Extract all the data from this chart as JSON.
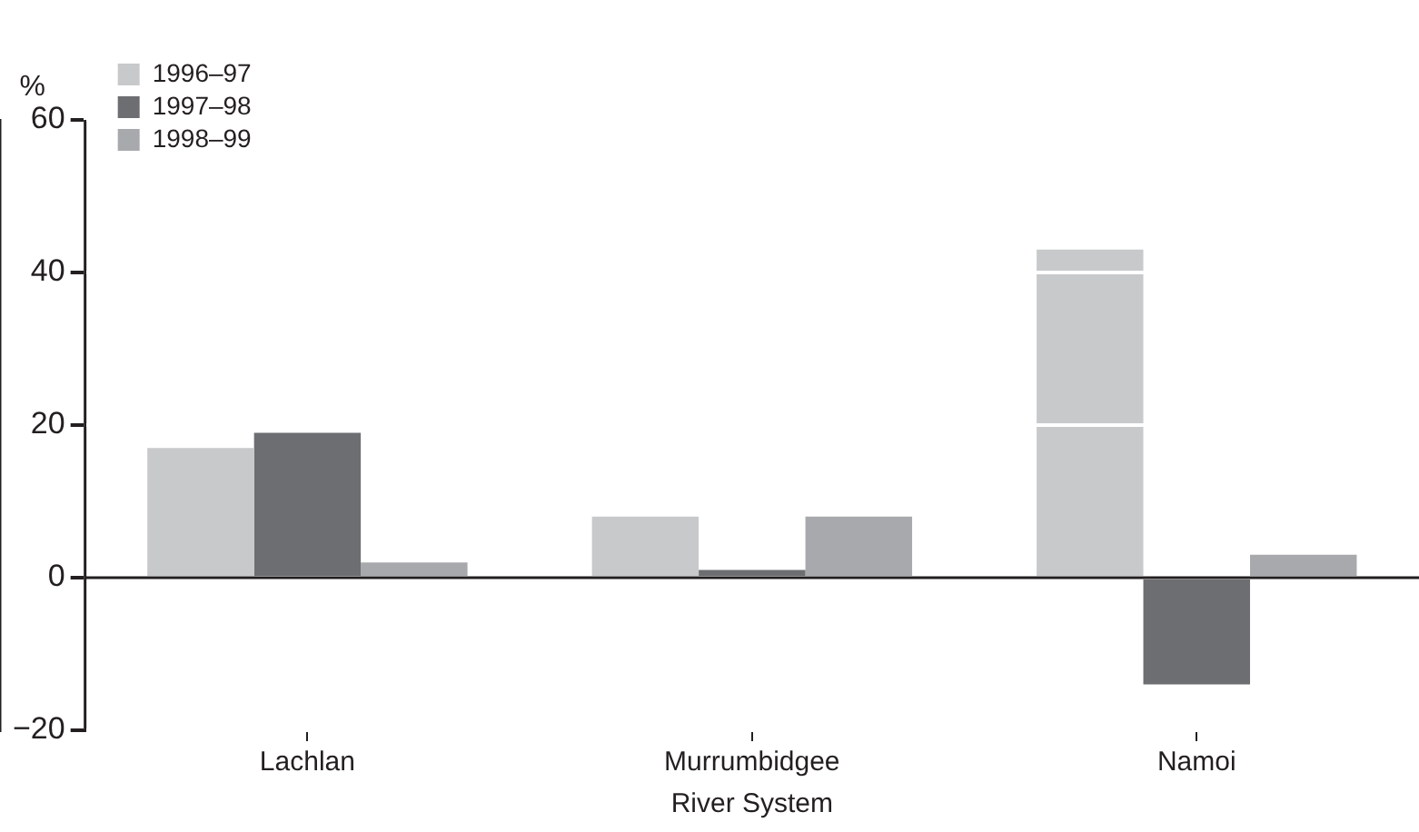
{
  "chart_data": {
    "type": "bar",
    "xlabel": "River System",
    "ylabel": "%",
    "categories": [
      "Lachlan",
      "Murrumbidgee",
      "Namoi"
    ],
    "series": [
      {
        "name": "1996–97",
        "color": "#c8c9cb",
        "values": [
          17,
          8,
          43
        ]
      },
      {
        "name": "1997–98",
        "color": "#6d6e71",
        "values": [
          19,
          1,
          -14
        ]
      },
      {
        "name": "1998–99",
        "color": "#a8a9ac",
        "values": [
          2,
          8,
          3
        ]
      }
    ],
    "ylim": [
      -20,
      60
    ],
    "yticks": [
      -20,
      0,
      20,
      40,
      60
    ],
    "grid": "y",
    "legend": "top left",
    "ref_lines": [
      {
        "axis": "y",
        "value": 0,
        "color": "#231f20"
      }
    ]
  }
}
